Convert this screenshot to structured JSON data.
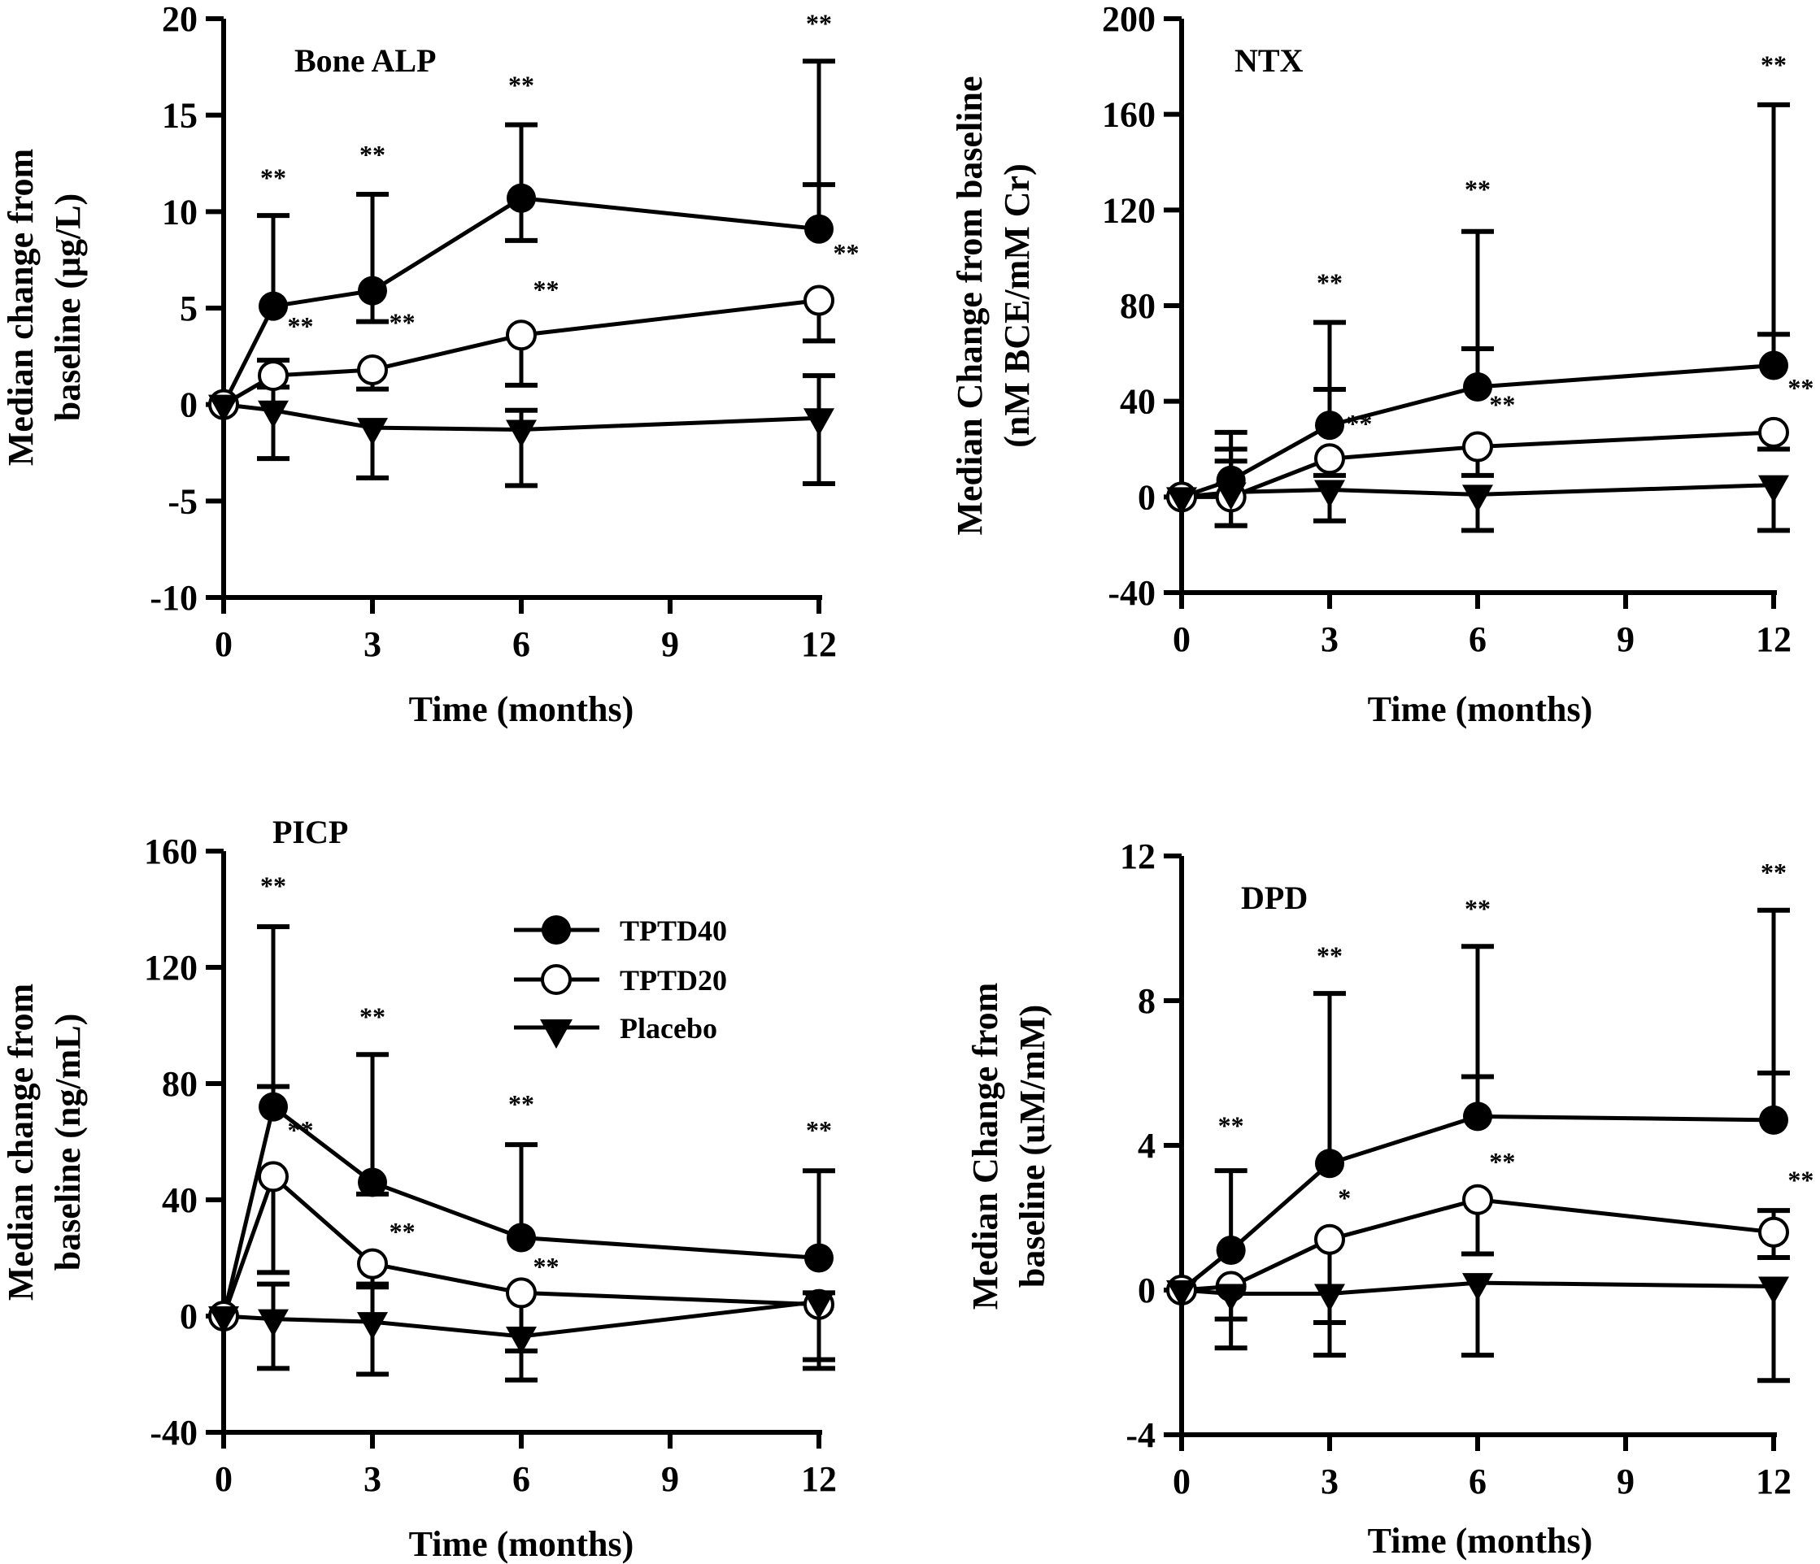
{
  "chart_data": [
    {
      "type": "line",
      "title": "Bone ALP",
      "xlabel": "Time (months)",
      "ylabel": [
        "Median change from",
        "baseline (μg/L)"
      ],
      "xlim": [
        0,
        12
      ],
      "ylim": [
        -10,
        20
      ],
      "xticks": [
        0,
        3,
        6,
        9,
        12
      ],
      "yticks": [
        20,
        15,
        10,
        5,
        0,
        -5,
        -10
      ],
      "x": [
        0,
        1,
        3,
        6,
        12
      ],
      "series": [
        {
          "name": "TPTD40",
          "marker": "filled-circle",
          "values": [
            0,
            5.1,
            5.9,
            10.7,
            9.1
          ],
          "err_upper": [
            null,
            9.8,
            10.9,
            14.5,
            17.8
          ],
          "err_lower": [
            null,
            null,
            4.3,
            8.5,
            11.4
          ]
        },
        {
          "name": "TPTD20",
          "marker": "open-circle",
          "values": [
            0,
            1.5,
            1.8,
            3.6,
            5.4
          ],
          "err_upper": [
            null,
            2.3,
            null,
            null,
            null
          ],
          "err_lower": [
            null,
            null,
            0.8,
            1.0,
            3.3
          ]
        },
        {
          "name": "Placebo",
          "marker": "filled-triangle-down",
          "values": [
            0,
            -0.3,
            -1.2,
            -1.3,
            -0.7
          ],
          "err_upper": [
            null,
            0.9,
            null,
            -0.3,
            1.5
          ],
          "err_lower": [
            null,
            -2.8,
            -3.8,
            -4.2,
            -4.1
          ]
        }
      ],
      "annotations": [
        {
          "x": 1,
          "y": 11.3,
          "text": "**"
        },
        {
          "x": 1.55,
          "y": 3.6,
          "text": "**"
        },
        {
          "x": 3,
          "y": 12.5,
          "text": "**"
        },
        {
          "x": 3.6,
          "y": 3.8,
          "text": "**"
        },
        {
          "x": 6,
          "y": 16.1,
          "text": "**"
        },
        {
          "x": 6.5,
          "y": 5.5,
          "text": "**"
        },
        {
          "x": 12,
          "y": 19.3,
          "text": "**"
        },
        {
          "x": 12.55,
          "y": 7.4,
          "text": "**"
        }
      ]
    },
    {
      "type": "line",
      "title": "NTX",
      "xlabel": "Time (months)",
      "ylabel": [
        "Median Change from baseline",
        "(nM BCE/mM Cr)"
      ],
      "xlim": [
        0,
        12
      ],
      "ylim": [
        -40,
        200
      ],
      "xticks": [
        0,
        3,
        6,
        9,
        12
      ],
      "yticks": [
        200,
        160,
        120,
        80,
        40,
        0,
        -40
      ],
      "x": [
        0,
        1,
        3,
        6,
        12
      ],
      "series": [
        {
          "name": "TPTD40",
          "marker": "filled-circle",
          "values": [
            0,
            7,
            30,
            46,
            55
          ],
          "err_upper": [
            null,
            27,
            73,
            111,
            164
          ],
          "err_lower": [
            null,
            null,
            45,
            62,
            68
          ]
        },
        {
          "name": "TPTD20",
          "marker": "open-circle",
          "values": [
            0,
            0,
            16,
            21,
            27
          ],
          "err_upper": [
            null,
            20,
            null,
            null,
            null
          ],
          "err_lower": [
            null,
            -12,
            9,
            9,
            20
          ]
        },
        {
          "name": "Placebo",
          "marker": "filled-triangle-down",
          "values": [
            0,
            2,
            3,
            1,
            5
          ],
          "err_upper": [
            null,
            15,
            null,
            null,
            null
          ],
          "err_lower": [
            null,
            -12,
            -10,
            -14,
            -14
          ]
        }
      ],
      "annotations": [
        {
          "x": 3,
          "y": 86,
          "text": "**"
        },
        {
          "x": 3.6,
          "y": 27,
          "text": "**"
        },
        {
          "x": 6,
          "y": 125,
          "text": "**"
        },
        {
          "x": 6.5,
          "y": 35,
          "text": "**"
        },
        {
          "x": 12,
          "y": 177,
          "text": "**"
        },
        {
          "x": 12.55,
          "y": 42,
          "text": "**"
        }
      ]
    },
    {
      "type": "line",
      "title": "PICP",
      "xlabel": "Time (months)",
      "ylabel": [
        "Median change from",
        "baseline (ng/mL)"
      ],
      "xlim": [
        0,
        12
      ],
      "ylim": [
        -40,
        160
      ],
      "xticks": [
        0,
        3,
        6,
        9,
        12
      ],
      "yticks": [
        160,
        120,
        80,
        40,
        0,
        -40
      ],
      "x": [
        0,
        1,
        3,
        6,
        12
      ],
      "series": [
        {
          "name": "TPTD40",
          "marker": "filled-circle",
          "values": [
            0,
            72,
            46,
            27,
            20
          ],
          "err_upper": [
            null,
            134,
            90,
            59,
            50
          ],
          "err_lower": [
            null,
            79,
            42,
            null,
            null
          ]
        },
        {
          "name": "TPTD20",
          "marker": "open-circle",
          "values": [
            0,
            48,
            18,
            8,
            4
          ],
          "err_upper": [
            null,
            null,
            null,
            null,
            null
          ],
          "err_lower": [
            null,
            15,
            11,
            -12,
            -15
          ]
        },
        {
          "name": "Placebo",
          "marker": "filled-triangle-down",
          "values": [
            0,
            -1,
            -2,
            -7,
            5
          ],
          "err_upper": [
            null,
            11,
            10,
            null,
            8
          ],
          "err_lower": [
            null,
            -18,
            -20,
            -22,
            -18
          ]
        }
      ],
      "annotations": [
        {
          "x": 1,
          "y": 145,
          "text": "**"
        },
        {
          "x": 1.55,
          "y": 61,
          "text": "**"
        },
        {
          "x": 3,
          "y": 100,
          "text": "**"
        },
        {
          "x": 3.6,
          "y": 26,
          "text": "**"
        },
        {
          "x": 6,
          "y": 70,
          "text": "**"
        },
        {
          "x": 6.5,
          "y": 14,
          "text": "**"
        },
        {
          "x": 12,
          "y": 61,
          "text": "**"
        }
      ],
      "legend": {
        "placement": "top-right",
        "entries": [
          "TPTD40",
          "TPTD20",
          "Placebo"
        ]
      }
    },
    {
      "type": "line",
      "title": "DPD",
      "xlabel": "Time (months)",
      "ylabel": [
        "Median Change from",
        "baseline (uM/mM)"
      ],
      "xlim": [
        0,
        12
      ],
      "ylim": [
        -4,
        12
      ],
      "xticks": [
        0,
        3,
        6,
        9,
        12
      ],
      "yticks": [
        12,
        8,
        4,
        0,
        -4
      ],
      "x": [
        0,
        1,
        3,
        6,
        12
      ],
      "series": [
        {
          "name": "TPTD40",
          "marker": "filled-circle",
          "values": [
            0,
            1.1,
            3.5,
            4.8,
            4.7
          ],
          "err_upper": [
            null,
            3.3,
            8.2,
            9.5,
            10.5
          ],
          "err_lower": [
            null,
            null,
            null,
            5.9,
            6.0
          ]
        },
        {
          "name": "TPTD20",
          "marker": "open-circle",
          "values": [
            0,
            0.1,
            1.4,
            2.5,
            1.6
          ],
          "err_upper": [
            null,
            null,
            null,
            null,
            2.2
          ],
          "err_lower": [
            null,
            -0.8,
            -0.9,
            1.0,
            0.9
          ]
        },
        {
          "name": "Placebo",
          "marker": "filled-triangle-down",
          "values": [
            0,
            -0.1,
            -0.1,
            0.2,
            0.1
          ],
          "err_upper": [
            null,
            null,
            null,
            null,
            null
          ],
          "err_lower": [
            null,
            -1.6,
            -1.8,
            -1.8,
            -2.5
          ]
        }
      ],
      "annotations": [
        {
          "x": 1,
          "y": 4.3,
          "text": "**"
        },
        {
          "x": 3,
          "y": 9.0,
          "text": "**"
        },
        {
          "x": 3.3,
          "y": 2.3,
          "text": "*"
        },
        {
          "x": 6,
          "y": 10.3,
          "text": "**"
        },
        {
          "x": 6.5,
          "y": 3.3,
          "text": "**"
        },
        {
          "x": 12,
          "y": 11.3,
          "text": "**"
        },
        {
          "x": 12.55,
          "y": 2.8,
          "text": "**"
        }
      ]
    }
  ]
}
